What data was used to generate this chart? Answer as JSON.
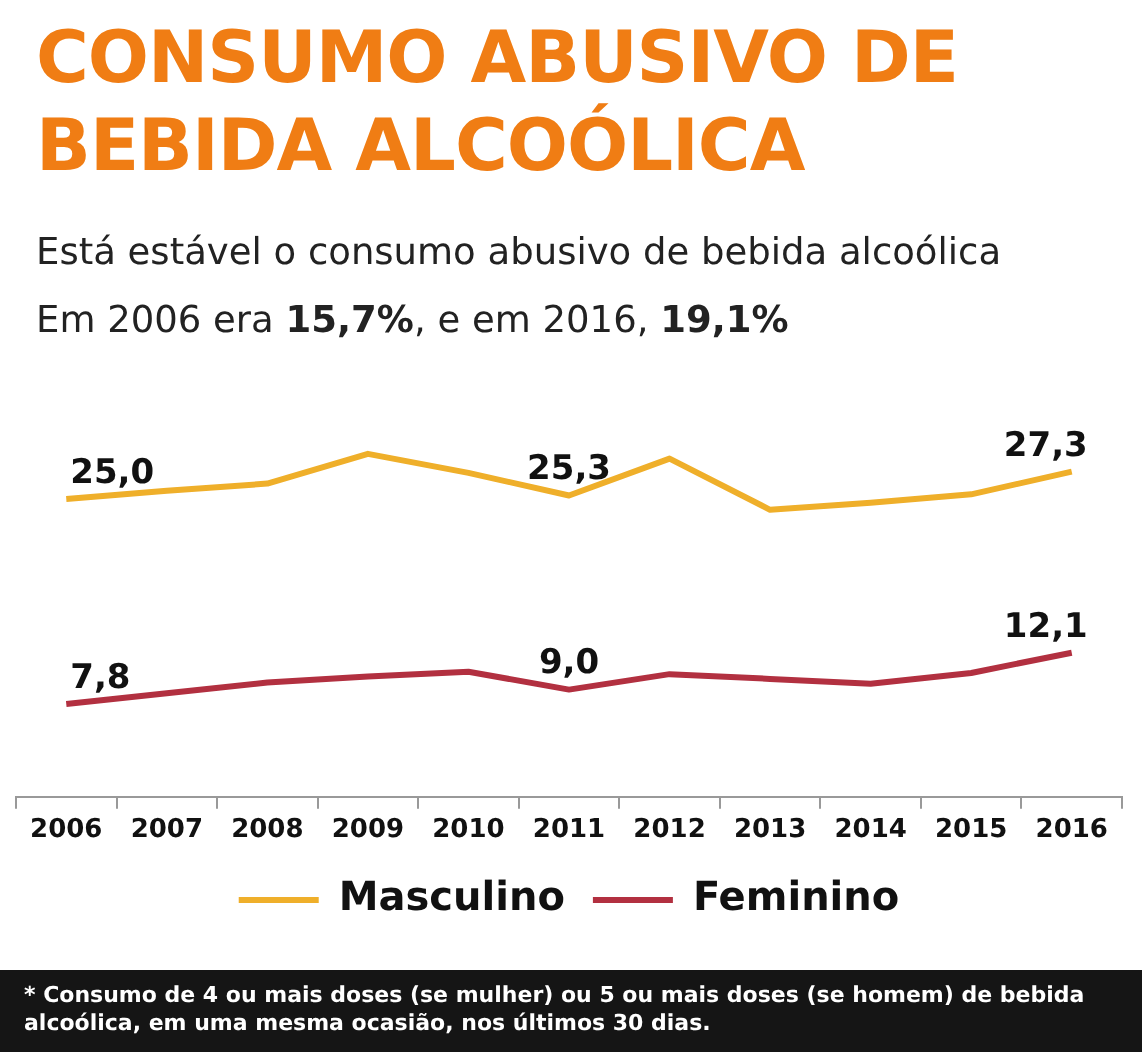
{
  "chart_data": {
    "type": "line",
    "title": "CONSUMO ABUSIVO DE BEBIDA ALCOÓLICA",
    "subtitle": "Está estável o consumo abusivo de bebida alcoólica",
    "annotations": [
      "Em 2006 era 15,7%, e em 2016, 19,1%",
      "* Consumo de 4 ou mais doses (se mulher) ou 5 ou mais doses (se homem) de bebida alcoólica, em uma mesma ocasião, nos últimos 30 dias."
    ],
    "categories": [
      "2006",
      "2007",
      "2008",
      "2009",
      "2010",
      "2011",
      "2012",
      "2013",
      "2014",
      "2015",
      "2016"
    ],
    "series": [
      {
        "name": "Masculino",
        "color": "#efaf2a",
        "values": [
          25.0,
          25.7,
          26.3,
          28.8,
          27.2,
          25.3,
          28.4,
          24.1,
          24.7,
          25.4,
          27.3
        ],
        "value_labels": [
          "25,0",
          null,
          null,
          null,
          null,
          "25,3",
          null,
          null,
          null,
          null,
          "27,3"
        ]
      },
      {
        "name": "Feminino",
        "color": "#b23040",
        "values": [
          7.8,
          8.7,
          9.6,
          10.1,
          10.5,
          9.0,
          10.3,
          9.9,
          9.5,
          10.4,
          12.1
        ],
        "value_labels": [
          "7,8",
          null,
          null,
          null,
          null,
          "9,0",
          null,
          null,
          null,
          null,
          "12,1"
        ]
      }
    ],
    "tick_labels": "x",
    "grid": false,
    "legend": "bottom"
  }
}
